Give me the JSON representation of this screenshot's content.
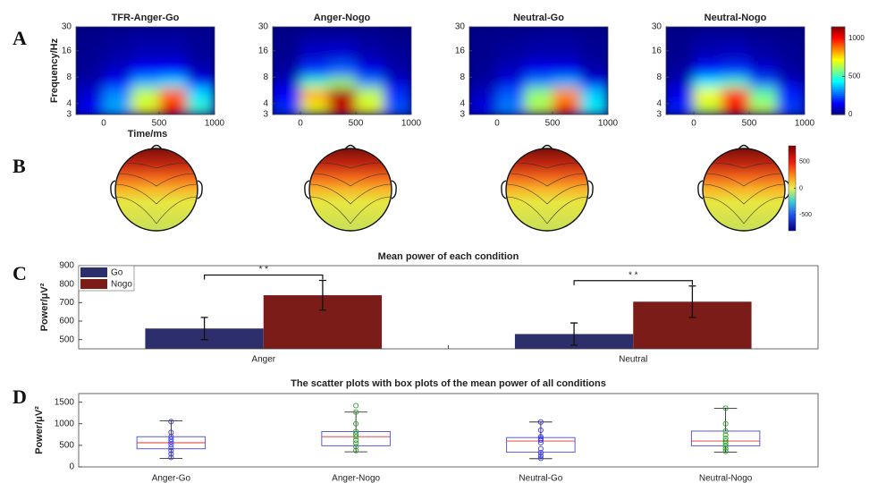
{
  "chart_data": [
    {
      "type": "heatmap",
      "panel_label": "A",
      "title": "TFR-Anger-Go",
      "xlabel": "Time/ms",
      "ylabel": "Frequency/Hz",
      "xbins": [
        -250,
        0,
        250,
        500,
        750,
        1000
      ],
      "ybins": [
        3,
        4,
        6,
        8,
        12,
        20,
        30
      ],
      "z": [
        [
          150,
          350,
          700,
          1000,
          500
        ],
        [
          100,
          300,
          650,
          900,
          400
        ],
        [
          50,
          150,
          350,
          400,
          150
        ],
        [
          30,
          80,
          150,
          150,
          60
        ],
        [
          20,
          40,
          60,
          60,
          30
        ],
        [
          10,
          20,
          30,
          30,
          20
        ]
      ],
      "xlim": [
        -250,
        1000
      ],
      "xticks": [
        0,
        500,
        1000
      ],
      "ylim": [
        3,
        30
      ],
      "yticks": [
        3,
        4,
        8,
        16,
        30
      ],
      "ylog": true,
      "clim": [
        0,
        1150
      ]
    },
    {
      "type": "heatmap",
      "title": "Anger-Nogo",
      "xbins": [
        -250,
        0,
        250,
        500,
        750,
        1000
      ],
      "ybins": [
        3,
        4,
        6,
        8,
        12,
        20,
        30
      ],
      "z": [
        [
          200,
          700,
          1050,
          700,
          250
        ],
        [
          150,
          800,
          1100,
          650,
          200
        ],
        [
          80,
          500,
          600,
          300,
          100
        ],
        [
          40,
          200,
          250,
          120,
          50
        ],
        [
          20,
          80,
          90,
          50,
          30
        ],
        [
          10,
          30,
          30,
          20,
          10
        ]
      ],
      "xlim": [
        -250,
        1000
      ],
      "xticks": [
        0,
        500,
        1000
      ],
      "ylim": [
        3,
        30
      ],
      "yticks": [
        3,
        4,
        8,
        16,
        30
      ],
      "ylog": true,
      "clim": [
        0,
        1150
      ]
    },
    {
      "type": "heatmap",
      "title": "Neutral-Go",
      "xbins": [
        -250,
        0,
        250,
        500,
        750,
        1000
      ],
      "ybins": [
        3,
        4,
        6,
        8,
        12,
        20,
        30
      ],
      "z": [
        [
          120,
          300,
          650,
          950,
          450
        ],
        [
          80,
          250,
          600,
          850,
          380
        ],
        [
          40,
          120,
          300,
          350,
          130
        ],
        [
          25,
          70,
          130,
          130,
          50
        ],
        [
          15,
          35,
          50,
          50,
          25
        ],
        [
          10,
          15,
          25,
          25,
          15
        ]
      ],
      "xlim": [
        -250,
        1000
      ],
      "xticks": [
        0,
        500,
        1000
      ],
      "ylim": [
        3,
        30
      ],
      "yticks": [
        3,
        4,
        8,
        16,
        30
      ],
      "ylog": true,
      "clim": [
        0,
        1150
      ]
    },
    {
      "type": "heatmap",
      "title": "Neutral-Nogo",
      "xbins": [
        -250,
        0,
        250,
        500,
        750,
        1000
      ],
      "ybins": [
        3,
        4,
        6,
        8,
        12,
        20,
        30
      ],
      "z": [
        [
          180,
          650,
          1000,
          650,
          220
        ],
        [
          130,
          700,
          950,
          550,
          180
        ],
        [
          70,
          420,
          500,
          250,
          90
        ],
        [
          35,
          170,
          200,
          100,
          40
        ],
        [
          20,
          60,
          70,
          40,
          25
        ],
        [
          10,
          25,
          25,
          15,
          10
        ]
      ],
      "xlim": [
        -250,
        1000
      ],
      "xticks": [
        0,
        500,
        1000
      ],
      "ylim": [
        3,
        30
      ],
      "yticks": [
        3,
        4,
        8,
        16,
        30
      ],
      "ylog": true,
      "clim": [
        0,
        1150
      ],
      "cticks": [
        0,
        500,
        1000
      ]
    },
    {
      "type": "topomap",
      "panel_label": "B",
      "clim": [
        -800,
        800
      ],
      "cticks": [
        -500,
        0,
        500
      ]
    },
    {
      "type": "bar",
      "panel_label": "C",
      "title": "Mean power of each condition",
      "ylabel": "Power/μV²",
      "categories": [
        "Anger",
        "Neutral"
      ],
      "series": [
        {
          "name": "Go",
          "color": "#2c2f6b",
          "values": [
            560,
            530
          ],
          "errors": [
            60,
            60
          ]
        },
        {
          "name": "Nogo",
          "color": "#7b1c18",
          "values": [
            740,
            705
          ],
          "errors": [
            80,
            85
          ]
        }
      ],
      "significance": [
        "* *",
        "* *"
      ],
      "ylim": [
        450,
        900
      ],
      "yticks": [
        500,
        600,
        700,
        800,
        900
      ],
      "legend": "upper left"
    },
    {
      "type": "box",
      "panel_label": "D",
      "title": "The scatter plots with box plots of the mean power of all conditions",
      "ylabel": "Power/μV²",
      "categories": [
        "Anger-Go",
        "Anger-Nogo",
        "Neutral-Go",
        "Neutral-Nogo"
      ],
      "boxes": [
        {
          "whislo": 200,
          "q1": 420,
          "med": 560,
          "q3": 700,
          "whishi": 1070
        },
        {
          "whislo": 350,
          "q1": 490,
          "med": 700,
          "q3": 820,
          "whishi": 1270
        },
        {
          "whislo": 190,
          "q1": 340,
          "med": 600,
          "q3": 680,
          "whishi": 1040
        },
        {
          "whislo": 340,
          "q1": 490,
          "med": 600,
          "q3": 830,
          "whishi": 1360
        }
      ],
      "points": [
        [
          220,
          300,
          380,
          450,
          520,
          580,
          640,
          700,
          800,
          1050
        ],
        [
          380,
          470,
          550,
          620,
          700,
          760,
          820,
          1000,
          1270,
          1420
        ],
        [
          200,
          260,
          330,
          420,
          560,
          620,
          660,
          700,
          850,
          1040
        ],
        [
          360,
          420,
          480,
          540,
          600,
          660,
          740,
          830,
          1000,
          1360
        ]
      ],
      "box_color": "#4a4ad0",
      "median_color": "#e03030",
      "point_colors": [
        "#3a3af0",
        "#2ea02e",
        "#3a3af0",
        "#2ea02e"
      ],
      "ylim": [
        0,
        1700
      ],
      "yticks": [
        0,
        500,
        1000,
        1500
      ]
    }
  ]
}
